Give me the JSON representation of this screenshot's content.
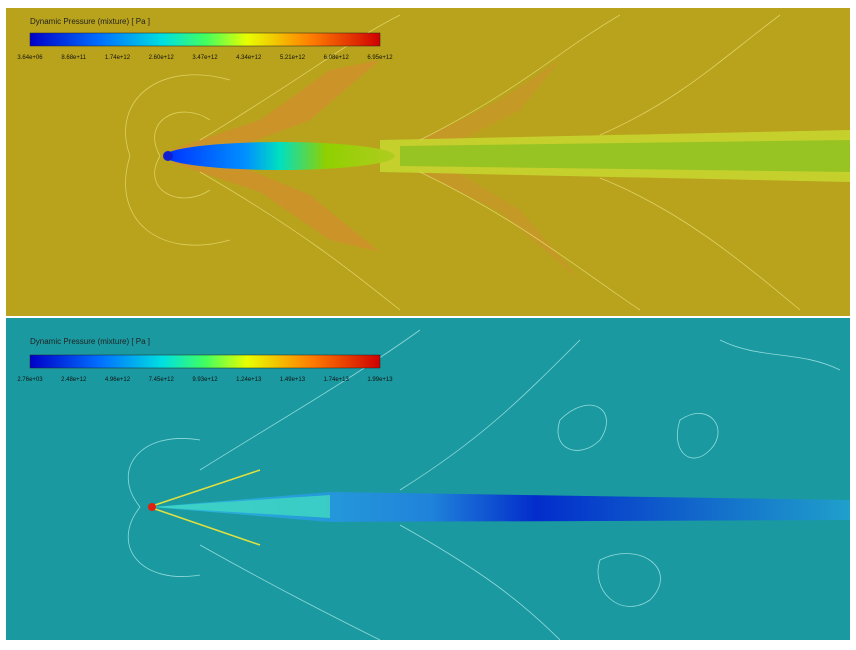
{
  "panels": [
    {
      "title": "Dynamic Pressure (mixture) [ Pa ]",
      "colorbar_ticks": [
        "3.64e+06",
        "8.68e+11",
        "1.74e+12",
        "2.60e+12",
        "3.47e+12",
        "4.34e+12",
        "5.21e+12",
        "6.08e+12",
        "6.95e+12"
      ]
    },
    {
      "title": "Dynamic Pressure (mixture) [ Pa ]",
      "colorbar_ticks": [
        "2.76e+03",
        "2.48e+12",
        "4.96e+12",
        "7.45e+12",
        "9.93e+12",
        "1.24e+13",
        "1.49e+13",
        "1.74e+13",
        "1.99e+13"
      ]
    }
  ]
}
